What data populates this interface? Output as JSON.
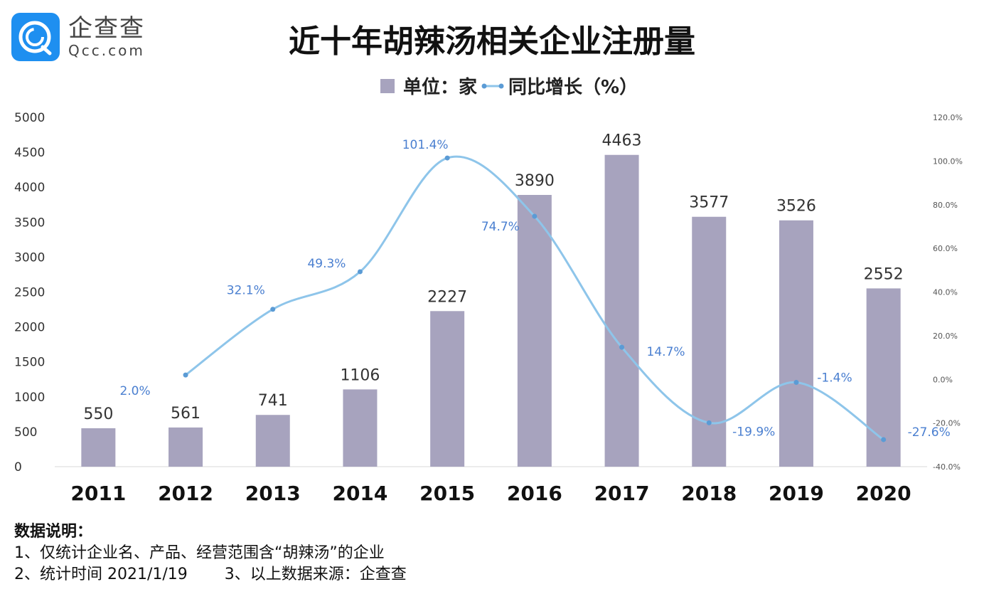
{
  "logo": {
    "name_cn": "企查查",
    "name_en": "Qcc.com"
  },
  "chart_data": {
    "type": "bar+line",
    "title": "近十年胡辣汤相关企业注册量",
    "legend": {
      "placement": "top-center",
      "items": [
        "单位：家",
        "同比增长（%）"
      ]
    },
    "categories": [
      "2011",
      "2012",
      "2013",
      "2014",
      "2015",
      "2016",
      "2017",
      "2018",
      "2019",
      "2020"
    ],
    "series": [
      {
        "name": "单位：家",
        "type": "bar",
        "axis": "left",
        "color": "#a7a3be",
        "values": [
          550,
          561,
          741,
          1106,
          2227,
          3890,
          4463,
          3577,
          3526,
          2552
        ],
        "labels": [
          "550",
          "561",
          "741",
          "1106",
          "2227",
          "3890",
          "4463",
          "3577",
          "3526",
          "2552"
        ]
      },
      {
        "name": "同比增长（%）",
        "type": "line",
        "axis": "right",
        "color": "#8ec5ea",
        "marker_color": "#5b9bd5",
        "label_color": "#4a7fd0",
        "values": [
          null,
          2.0,
          32.1,
          49.3,
          101.4,
          74.7,
          14.7,
          -19.9,
          -1.4,
          -27.6
        ],
        "labels": [
          "",
          "2.0%",
          "32.1%",
          "49.3%",
          "101.4%",
          "74.7%",
          "14.7%",
          "-19.9%",
          "-1.4%",
          "-27.6%"
        ]
      }
    ],
    "left_axis": {
      "range": [
        0,
        5000
      ],
      "ticks": [
        "0",
        "500",
        "1000",
        "1500",
        "2000",
        "2500",
        "3000",
        "3500",
        "4000",
        "4500",
        "5000"
      ]
    },
    "right_axis": {
      "range": [
        -40,
        120
      ],
      "ticks": [
        "-40.0%",
        "-20.0%",
        "0.0%",
        "20.0%",
        "40.0%",
        "60.0%",
        "80.0%",
        "100.0%",
        "120.0%"
      ]
    },
    "grid": false
  },
  "notes": {
    "heading": "数据说明：",
    "line1": "1、仅统计企业名、产品、经营范围含“胡辣汤”的企业",
    "line2a": "2、统计时间 2021/1/19",
    "line2b": "3、以上数据来源：企查查"
  }
}
